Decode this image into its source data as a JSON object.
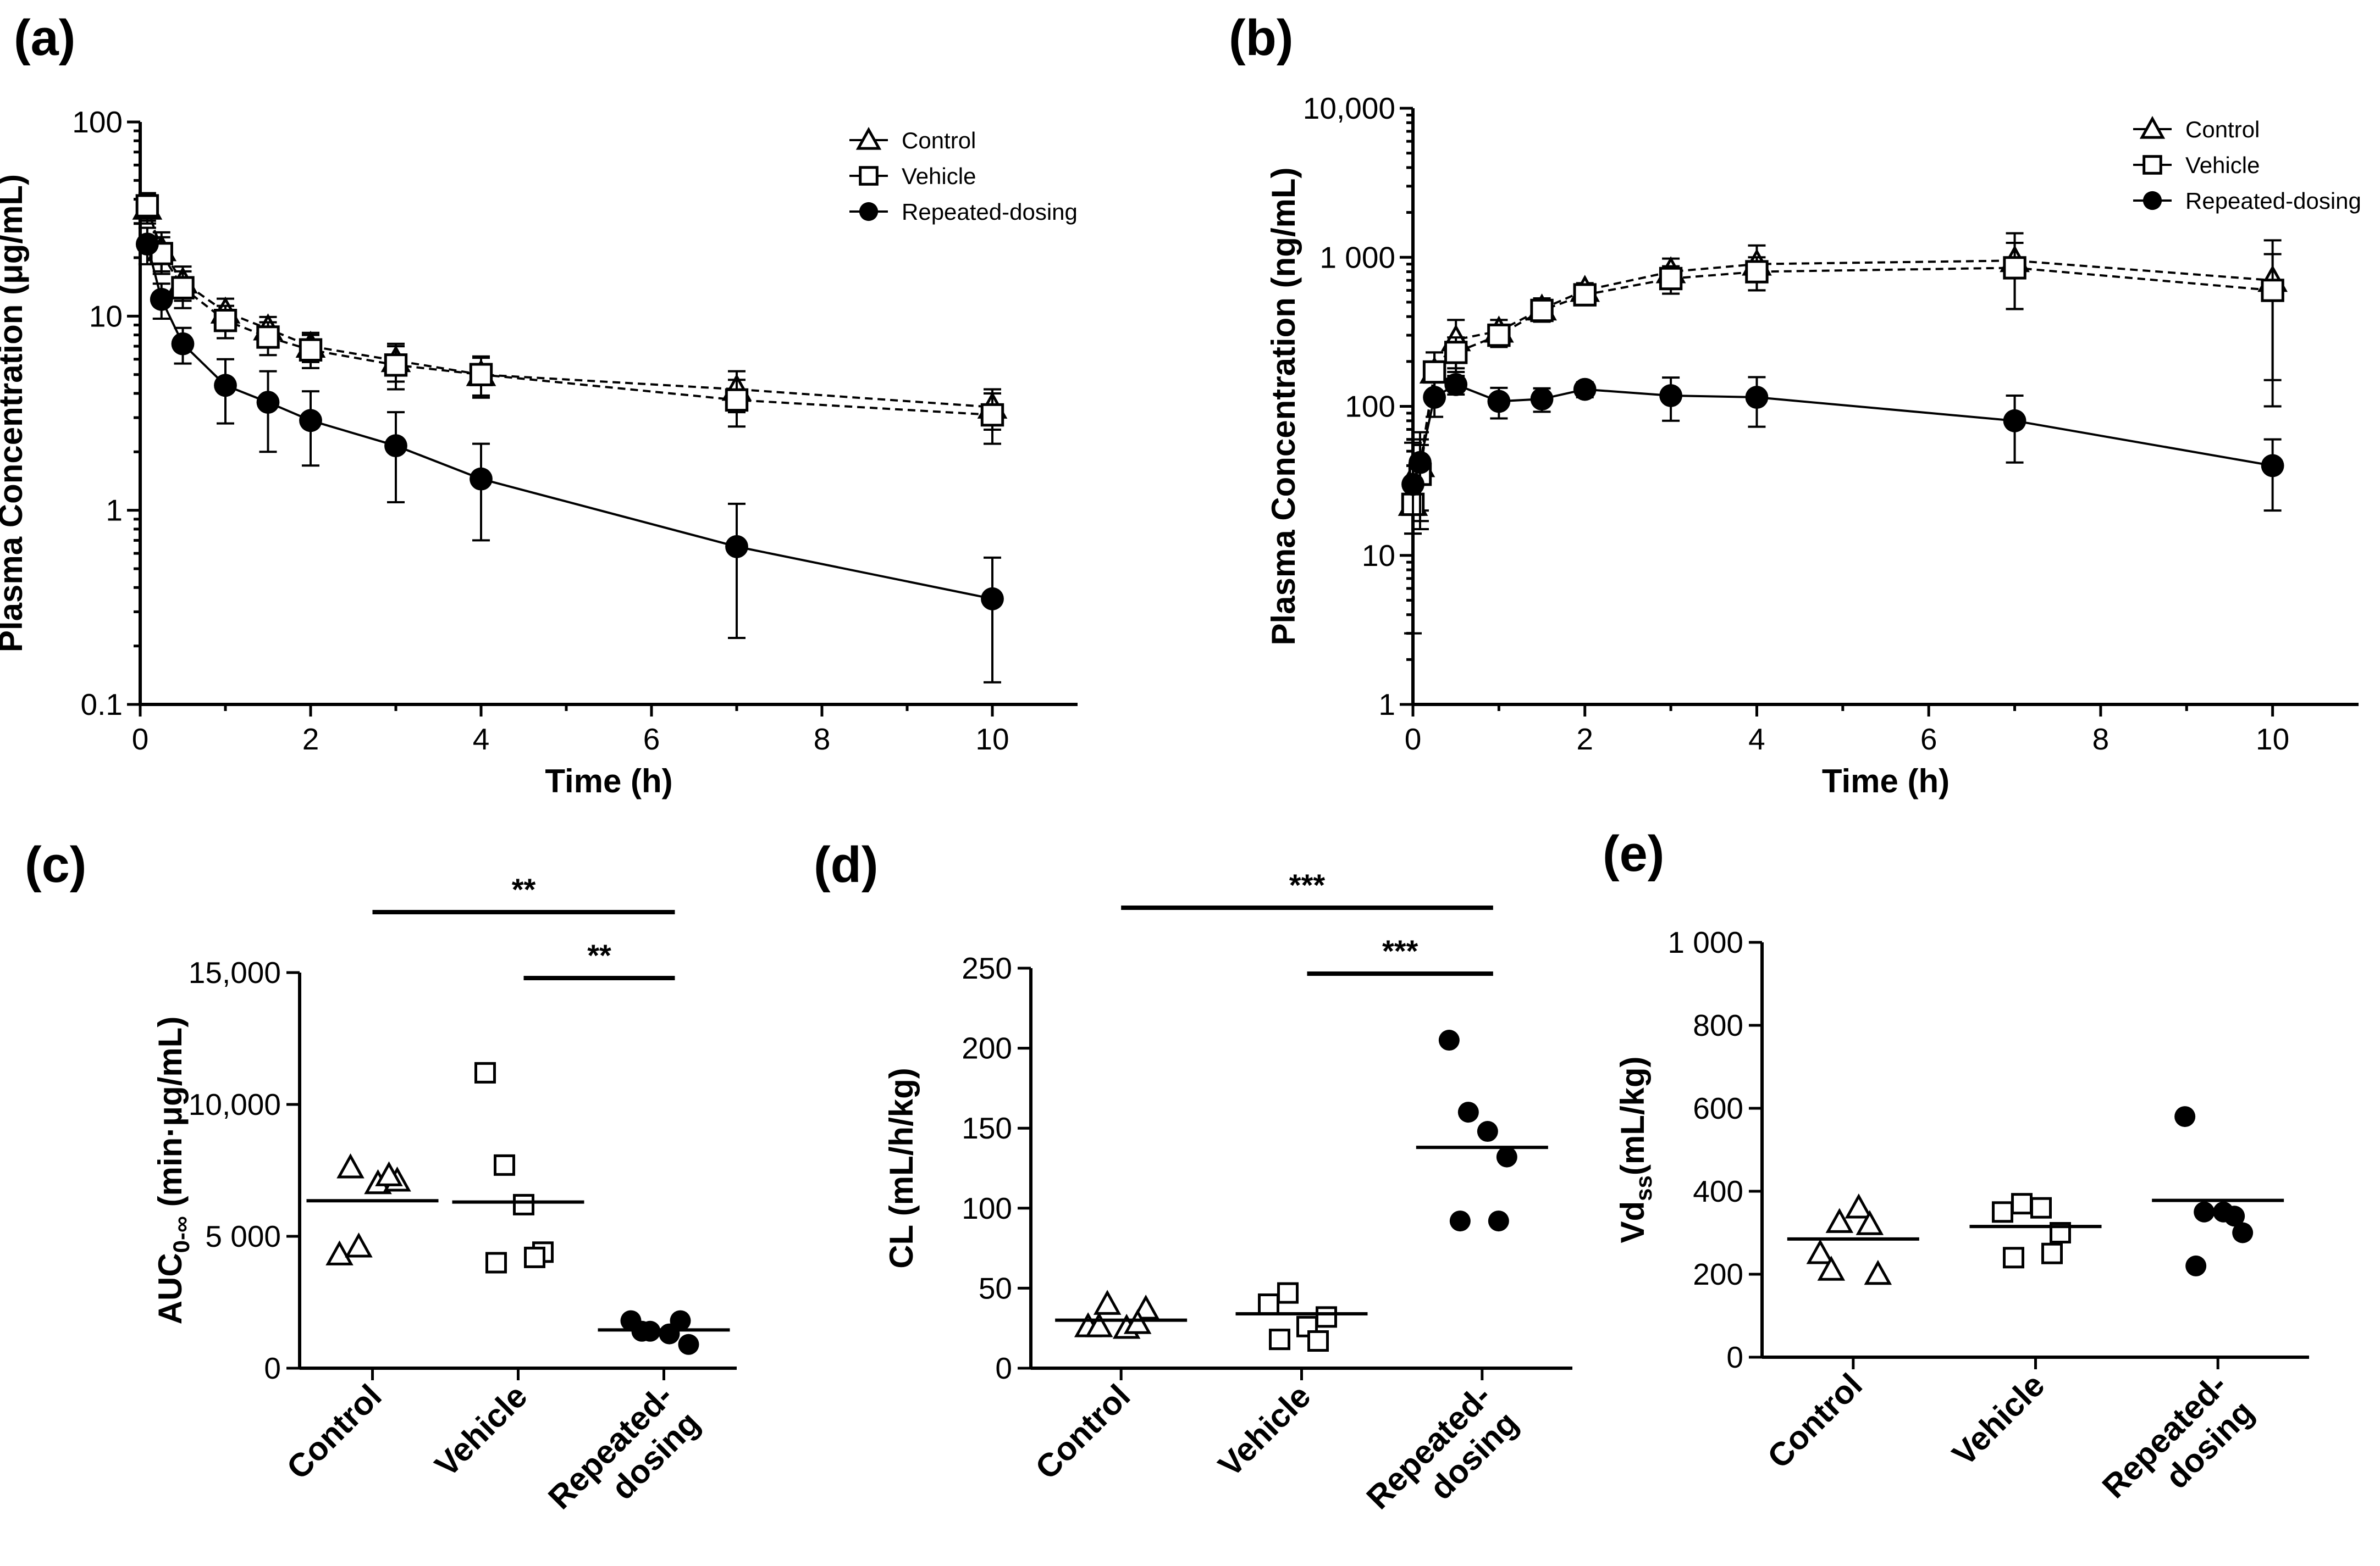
{
  "chart_data": [
    {
      "id": "a",
      "type": "line",
      "panel_label": "(a)",
      "xlabel": "Time (h)",
      "ylabel": "Plasma Concentration (μg/mL)",
      "yscale": "log",
      "xlim": [
        0,
        11
      ],
      "ylim": [
        0.1,
        100
      ],
      "xticks": [
        0,
        2,
        4,
        6,
        8,
        10
      ],
      "xtick_labels": [
        "0",
        "2",
        "4",
        "6",
        "8",
        "10"
      ],
      "yticks": [
        0.1,
        1,
        10,
        100
      ],
      "ytick_labels": [
        "0.1",
        "1",
        "10",
        "100"
      ],
      "legend": {
        "position": "top-right"
      },
      "series": [
        {
          "name": "Control",
          "marker": "triangle",
          "dash": true,
          "x": [
            0.083,
            0.25,
            0.5,
            1,
            1.5,
            2,
            3,
            4,
            7,
            10
          ],
          "y": [
            36,
            22,
            15,
            10.5,
            8.6,
            7,
            5.9,
            5,
            4.2,
            3.4
          ],
          "err": [
            6,
            5,
            3,
            1.8,
            1.3,
            1.2,
            1.3,
            1.1,
            1.0,
            0.8
          ]
        },
        {
          "name": "Vehicle",
          "marker": "square",
          "dash": true,
          "x": [
            0.083,
            0.25,
            0.5,
            1,
            1.5,
            2,
            3,
            4,
            7,
            10
          ],
          "y": [
            37,
            21,
            14,
            9.5,
            7.8,
            6.7,
            5.6,
            5,
            3.7,
            3.1
          ],
          "err": [
            6,
            4.5,
            3,
            1.8,
            1.5,
            1.3,
            1.4,
            1.2,
            1.0,
            0.9
          ]
        },
        {
          "name": "Repeated-dosing",
          "marker": "circle",
          "dash": false,
          "x": [
            0.083,
            0.25,
            0.5,
            1,
            1.5,
            2,
            3,
            4,
            7,
            10
          ],
          "y": [
            23.5,
            12.2,
            7.2,
            4.4,
            3.6,
            2.9,
            2.15,
            1.45,
            0.65,
            0.35
          ],
          "err": [
            5,
            2.5,
            1.5,
            1.6,
            1.6,
            1.2,
            1.05,
            0.75,
            0.43,
            0.22
          ]
        }
      ]
    },
    {
      "id": "b",
      "type": "line",
      "panel_label": "(b)",
      "xlabel": "Time (h)",
      "ylabel": "Plasma Concentration (ng/mL)",
      "yscale": "log",
      "xlim": [
        0,
        11
      ],
      "ylim": [
        1,
        10000
      ],
      "xticks": [
        0,
        2,
        4,
        6,
        8,
        10
      ],
      "xtick_labels": [
        "0",
        "2",
        "4",
        "6",
        "8",
        "10"
      ],
      "yticks": [
        1,
        10,
        100,
        1000,
        10000
      ],
      "ytick_labels": [
        "1",
        "10",
        "100",
        "1 000",
        "10,000"
      ],
      "legend": {
        "position": "top-right"
      },
      "series": [
        {
          "name": "Control",
          "marker": "triangle",
          "dash": true,
          "x": [
            0,
            0.083,
            0.25,
            0.5,
            1,
            1.5,
            2,
            3,
            4,
            7,
            10
          ],
          "y": [
            22,
            40,
            170,
            280,
            320,
            450,
            600,
            800,
            900,
            950,
            700
          ],
          "err": [
            8,
            20,
            60,
            100,
            60,
            80,
            70,
            180,
            300,
            500,
            600
          ]
        },
        {
          "name": "Vehicle",
          "marker": "square",
          "dash": true,
          "x": [
            0,
            0.083,
            0.25,
            0.5,
            1,
            1.5,
            2,
            3,
            4,
            7,
            10
          ],
          "y": [
            22,
            35,
            170,
            230,
            300,
            440,
            560,
            720,
            800,
            850,
            600
          ],
          "err": [
            8,
            20,
            60,
            60,
            50,
            70,
            60,
            150,
            200,
            400,
            450
          ]
        },
        {
          "name": "Repeated-dosing",
          "marker": "circle",
          "dash": false,
          "x": [
            0,
            0.083,
            0.25,
            0.5,
            1,
            1.5,
            2,
            3,
            4,
            7,
            10
          ],
          "y": [
            30,
            42,
            115,
            140,
            108,
            112,
            130,
            118,
            115,
            80,
            40
          ],
          "err": [
            27,
            25,
            30,
            20,
            25,
            20,
            15,
            38,
            42,
            38,
            20
          ]
        }
      ]
    },
    {
      "id": "c",
      "type": "scatter",
      "panel_label": "(c)",
      "ylabel_main": "AUC",
      "ylabel_sub": "0-∞",
      "ylabel_rest": " (min·μg/mL)",
      "ylim": [
        0,
        15000
      ],
      "yticks": [
        0,
        5000,
        10000,
        15000
      ],
      "ytick_labels": [
        "0",
        "5 000",
        "10,000",
        "15,000"
      ],
      "categories": [
        "Control",
        "Vehicle",
        "Repeated-dosing"
      ],
      "category_labels": [
        [
          "Control"
        ],
        [
          "Vehicle"
        ],
        [
          "Repeated-",
          "dosing"
        ]
      ],
      "markers": [
        "triangle",
        "square",
        "circle"
      ],
      "values": [
        [
          4300,
          4600,
          7000,
          7100,
          7600,
          7300
        ],
        [
          11200,
          7700,
          6200,
          4400,
          4000,
          4200
        ],
        [
          1800,
          1400,
          1300,
          900,
          1400,
          1800
        ]
      ],
      "means": [
        6350,
        6300,
        1450
      ],
      "significance": [
        {
          "from": 0,
          "to": 2,
          "label": "**"
        },
        {
          "from": 1,
          "to": 2,
          "label": "**"
        }
      ]
    },
    {
      "id": "d",
      "type": "scatter",
      "panel_label": "(d)",
      "ylabel_main": "CL (mL/h/kg)",
      "ylim": [
        0,
        250
      ],
      "yticks": [
        0,
        50,
        100,
        150,
        200,
        250
      ],
      "ytick_labels": [
        "0",
        "50",
        "100",
        "150",
        "200",
        "250"
      ],
      "categories": [
        "Control",
        "Vehicle",
        "Repeated-dosing"
      ],
      "category_labels": [
        [
          "Control"
        ],
        [
          "Vehicle"
        ],
        [
          "Repeated-",
          "dosing"
        ]
      ],
      "markers": [
        "triangle",
        "square",
        "circle"
      ],
      "values": [
        [
          26,
          40,
          25,
          37,
          26,
          28
        ],
        [
          40,
          47,
          26,
          32,
          18,
          17
        ],
        [
          205,
          160,
          148,
          132,
          92,
          92
        ]
      ],
      "means": [
        30,
        34,
        138
      ],
      "significance": [
        {
          "from": 0,
          "to": 2,
          "label": "***"
        },
        {
          "from": 1,
          "to": 2,
          "label": "***"
        }
      ]
    },
    {
      "id": "e",
      "type": "scatter",
      "panel_label": "(e)",
      "ylabel_main": "Vd",
      "ylabel_sub": "ss",
      "ylabel_rest": "(mL/kg)",
      "ylim": [
        0,
        1000
      ],
      "yticks": [
        0,
        200,
        400,
        600,
        800,
        1000
      ],
      "ytick_labels": [
        "0",
        "200",
        "400",
        "600",
        "800",
        "1 000"
      ],
      "categories": [
        "Control",
        "Vehicle",
        "Repeated-dosing"
      ],
      "category_labels": [
        [
          "Control"
        ],
        [
          "Vehicle"
        ],
        [
          "Repeated-",
          "dosing"
        ]
      ],
      "markers": [
        "triangle",
        "square",
        "circle"
      ],
      "values": [
        [
          250,
          325,
          360,
          200,
          210,
          320
        ],
        [
          350,
          370,
          360,
          300,
          240,
          250
        ],
        [
          580,
          350,
          350,
          300,
          220,
          340
        ]
      ],
      "means": [
        285,
        315,
        378
      ],
      "significance": []
    }
  ]
}
